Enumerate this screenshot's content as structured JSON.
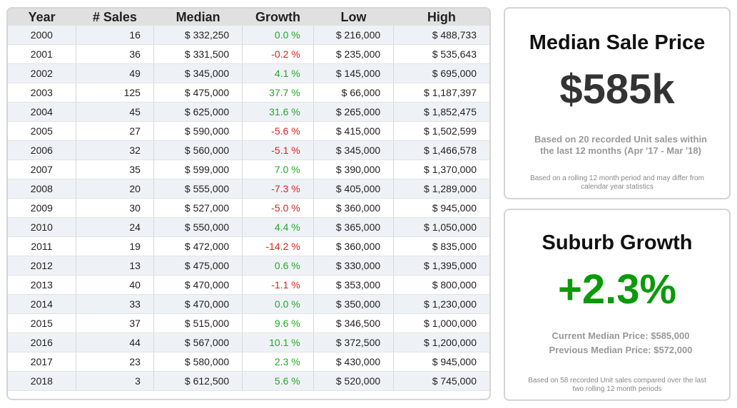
{
  "table": {
    "columns": [
      "Year",
      "# Sales",
      "Median",
      "Growth",
      "Low",
      "High"
    ],
    "rows": [
      [
        "2000",
        "16",
        "$ 332,250",
        "0.0 %",
        "$ 216,000",
        "$ 488,733"
      ],
      [
        "2001",
        "36",
        "$ 331,500",
        "-0.2 %",
        "$ 235,000",
        "$ 535,643"
      ],
      [
        "2002",
        "49",
        "$ 345,000",
        "4.1 %",
        "$ 145,000",
        "$ 695,000"
      ],
      [
        "2003",
        "125",
        "$ 475,000",
        "37.7 %",
        "$ 66,000",
        "$ 1,187,397"
      ],
      [
        "2004",
        "45",
        "$ 625,000",
        "31.6 %",
        "$ 265,000",
        "$ 1,852,475"
      ],
      [
        "2005",
        "27",
        "$ 590,000",
        "-5.6 %",
        "$ 415,000",
        "$ 1,502,599"
      ],
      [
        "2006",
        "32",
        "$ 560,000",
        "-5.1 %",
        "$ 345,000",
        "$ 1,466,578"
      ],
      [
        "2007",
        "35",
        "$ 599,000",
        "7.0 %",
        "$ 390,000",
        "$ 1,370,000"
      ],
      [
        "2008",
        "20",
        "$ 555,000",
        "-7.3 %",
        "$ 405,000",
        "$ 1,289,000"
      ],
      [
        "2009",
        "30",
        "$ 527,000",
        "-5.0 %",
        "$ 360,000",
        "$ 945,000"
      ],
      [
        "2010",
        "24",
        "$ 550,000",
        "4.4 %",
        "$ 365,000",
        "$ 1,050,000"
      ],
      [
        "2011",
        "19",
        "$ 472,000",
        "-14.2 %",
        "$ 360,000",
        "$ 835,000"
      ],
      [
        "2012",
        "13",
        "$ 475,000",
        "0.6 %",
        "$ 330,000",
        "$ 1,395,000"
      ],
      [
        "2013",
        "40",
        "$ 470,000",
        "-1.1 %",
        "$ 353,000",
        "$ 800,000"
      ],
      [
        "2014",
        "33",
        "$ 470,000",
        "0.0 %",
        "$ 350,000",
        "$ 1,230,000"
      ],
      [
        "2015",
        "37",
        "$ 515,000",
        "9.6 %",
        "$ 346,500",
        "$ 1,000,000"
      ],
      [
        "2016",
        "44",
        "$ 567,000",
        "10.1 %",
        "$ 372,500",
        "$ 1,200,000"
      ],
      [
        "2017",
        "23",
        "$ 580,000",
        "2.3 %",
        "$ 430,000",
        "$ 945,000"
      ],
      [
        "2018",
        "3",
        "$ 612,500",
        "5.6 %",
        "$ 520,000",
        "$ 745,000"
      ]
    ]
  },
  "median_card": {
    "title": "Median Sale Price",
    "value": "$585k",
    "note": "Based on 20 recorded Unit sales within the last 12 months (Apr '17 - Mar '18)",
    "footnote": "Based on a rolling 12 month period and may differ from calendar year statistics"
  },
  "growth_card": {
    "title": "Suburb Growth",
    "value": "+2.3%",
    "current": "Current Median Price: $585,000",
    "previous": "Previous Median Price: $572,000",
    "footnote": "Based on 58 recorded Unit sales compared over the last two rolling 12 month periods"
  }
}
